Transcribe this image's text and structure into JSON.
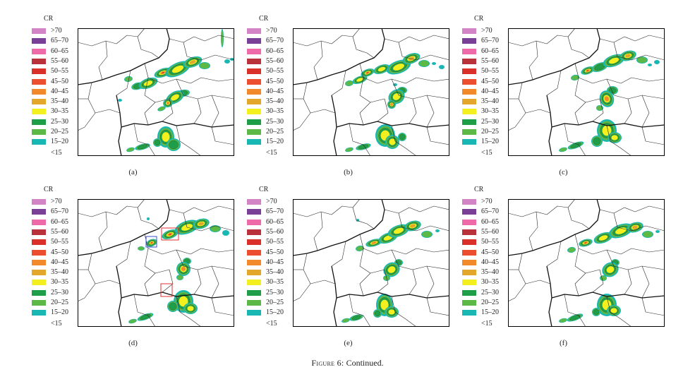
{
  "legend": {
    "title": "CR",
    "items": [
      {
        "label": ">70",
        "color": "#d384c6"
      },
      {
        "label": "65–70",
        "color": "#7a3f96"
      },
      {
        "label": "60–65",
        "color": "#ee6aa8"
      },
      {
        "label": "55–60",
        "color": "#b8323c"
      },
      {
        "label": "50–55",
        "color": "#d9302a"
      },
      {
        "label": "45–50",
        "color": "#ec4f2f"
      },
      {
        "label": "40–45",
        "color": "#f2892a"
      },
      {
        "label": "35–40",
        "color": "#e3a72b"
      },
      {
        "label": "30–35",
        "color": "#f4ef1f"
      },
      {
        "label": "25–30",
        "color": "#1f9e49"
      },
      {
        "label": "20–25",
        "color": "#5cb946"
      },
      {
        "label": "15–20",
        "color": "#19b7b4"
      }
    ],
    "below_label": "<15"
  },
  "panels": [
    {
      "label": "(a)"
    },
    {
      "label": "(b)"
    },
    {
      "label": "(c)"
    },
    {
      "label": "(d)"
    },
    {
      "label": "(e)"
    },
    {
      "label": "(f)"
    }
  ],
  "caption": {
    "label": "Figure 6:",
    "text": "Continued."
  }
}
